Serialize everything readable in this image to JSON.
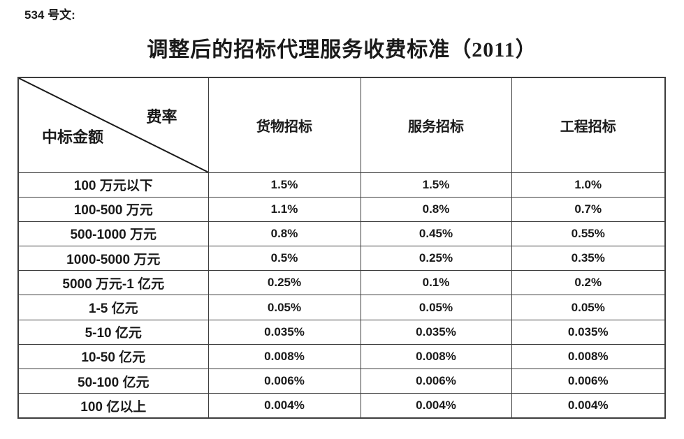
{
  "doc": {
    "number": "534 号文:",
    "title": "调整后的招标代理服务收费标准（2011）"
  },
  "table": {
    "corner_top_right": "费率",
    "corner_bottom_left": "中标金额",
    "columns": [
      "货物招标",
      "服务招标",
      "工程招标"
    ],
    "rows": [
      {
        "label": "100 万元以下",
        "values": [
          "1.5%",
          "1.5%",
          "1.0%"
        ]
      },
      {
        "label": "100-500 万元",
        "values": [
          "1.1%",
          "0.8%",
          "0.7%"
        ]
      },
      {
        "label": "500-1000 万元",
        "values": [
          "0.8%",
          "0.45%",
          "0.55%"
        ]
      },
      {
        "label": "1000-5000 万元",
        "values": [
          "0.5%",
          "0.25%",
          "0.35%"
        ]
      },
      {
        "label": "5000 万元-1 亿元",
        "values": [
          "0.25%",
          "0.1%",
          "0.2%"
        ]
      },
      {
        "label": "1-5 亿元",
        "values": [
          "0.05%",
          "0.05%",
          "0.05%"
        ]
      },
      {
        "label": "5-10 亿元",
        "values": [
          "0.035%",
          "0.035%",
          "0.035%"
        ]
      },
      {
        "label": "10-50 亿元",
        "values": [
          "0.008%",
          "0.008%",
          "0.008%"
        ]
      },
      {
        "label": "50-100 亿元",
        "values": [
          "0.006%",
          "0.006%",
          "0.006%"
        ]
      },
      {
        "label": "100 亿以上",
        "values": [
          "0.004%",
          "0.004%",
          "0.004%"
        ]
      }
    ]
  },
  "colors": {
    "background": "#ffffff",
    "text": "#1a1a1a",
    "border": "#3d3d3d",
    "diagonal": "#1a1a1a"
  }
}
